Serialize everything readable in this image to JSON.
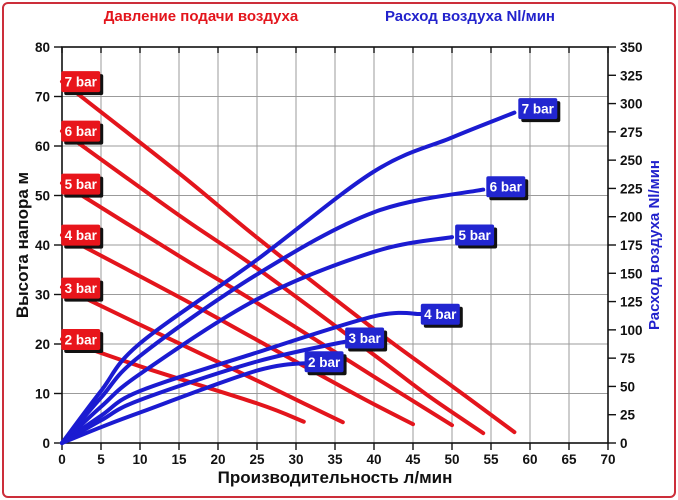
{
  "window": {
    "title": "Pump performance chart"
  },
  "legends": {
    "pressure": "Давление подачи воздуха",
    "airflow": "Расход воздуха Nl/мин"
  },
  "colors": {
    "red_curve": "#e3151c",
    "blue_curve": "#1b1bd1",
    "red_label_bg": "#e8151b",
    "blue_label_bg": "#2226d0",
    "label_text": "#ffffff",
    "label_shadow": "#111111",
    "grid": "#9b9b9b",
    "axis": "#111111",
    "border": "#cc2e3a"
  },
  "chart_data": {
    "type": "line",
    "title": "",
    "x_axis": {
      "label": "Производительность л/мин",
      "min": 0,
      "max": 70,
      "ticks": [
        0,
        5,
        10,
        15,
        20,
        25,
        30,
        35,
        40,
        45,
        50,
        55,
        60,
        65,
        70
      ],
      "grid": true
    },
    "y_left_axis": {
      "label": "Высота напора м",
      "min": 0,
      "max": 80,
      "ticks": [
        0,
        10,
        20,
        30,
        40,
        50,
        60,
        70,
        80
      ],
      "grid": true
    },
    "y_right_axis": {
      "label": "Расход воздуха Nl/мин",
      "min": 0,
      "max": 350,
      "ticks": [
        0,
        25,
        50,
        75,
        100,
        125,
        150,
        175,
        200,
        225,
        250,
        275,
        300,
        325,
        350
      ],
      "grid": false
    },
    "series": [
      {
        "name": "7 bar",
        "family": "head",
        "axis": "left",
        "color_key": "red_curve",
        "points": [
          [
            0,
            73
          ],
          [
            15,
            54.5
          ],
          [
            25,
            41.5
          ],
          [
            40,
            23
          ],
          [
            50,
            11.5
          ],
          [
            58,
            2.2
          ]
        ],
        "label": {
          "x": 2.4,
          "v": 73,
          "bg": "red_label_bg"
        }
      },
      {
        "name": "6 bar",
        "family": "head",
        "axis": "left",
        "color_key": "red_curve",
        "points": [
          [
            0,
            63
          ],
          [
            15,
            46
          ],
          [
            25,
            35.3
          ],
          [
            40,
            17.8
          ],
          [
            47,
            9.5
          ],
          [
            54,
            2
          ]
        ],
        "label": {
          "x": 2.4,
          "v": 63,
          "bg": "red_label_bg"
        }
      },
      {
        "name": "5 bar",
        "family": "head",
        "axis": "left",
        "color_key": "red_curve",
        "points": [
          [
            0,
            52.5
          ],
          [
            15,
            37.8
          ],
          [
            25,
            28.3
          ],
          [
            40,
            13.4
          ],
          [
            50,
            3.6
          ]
        ],
        "label": {
          "x": 2.4,
          "v": 52.3,
          "bg": "red_label_bg"
        }
      },
      {
        "name": "4 bar",
        "family": "head",
        "axis": "left",
        "color_key": "red_curve",
        "points": [
          [
            0,
            42
          ],
          [
            15,
            29.5
          ],
          [
            25,
            20.8
          ],
          [
            38,
            9.5
          ],
          [
            45,
            3.8
          ]
        ],
        "label": {
          "x": 2.4,
          "v": 42,
          "bg": "red_label_bg"
        }
      },
      {
        "name": "3 bar",
        "family": "head",
        "axis": "left",
        "color_key": "red_curve",
        "points": [
          [
            0,
            31.5
          ],
          [
            10,
            23.9
          ],
          [
            25,
            12.6
          ],
          [
            31,
            8
          ],
          [
            36,
            4.2
          ]
        ],
        "label": {
          "x": 2.4,
          "v": 31.3,
          "bg": "red_label_bg"
        }
      },
      {
        "name": "2 bar",
        "family": "head",
        "axis": "left",
        "color_key": "red_curve",
        "points": [
          [
            0,
            21
          ],
          [
            10,
            15.5
          ],
          [
            25,
            8
          ],
          [
            31,
            4.3
          ]
        ],
        "label": {
          "x": 2.4,
          "v": 20.9,
          "bg": "red_label_bg"
        }
      },
      {
        "name": "7 bar",
        "family": "air",
        "axis": "right",
        "color_key": "blue_curve",
        "points": [
          [
            0,
            0
          ],
          [
            5,
            46
          ],
          [
            10,
            88
          ],
          [
            25,
            162
          ],
          [
            40,
            240
          ],
          [
            50,
            270
          ],
          [
            58,
            292
          ]
        ],
        "label": {
          "x": 61,
          "v": 295.5,
          "bg": "blue_label_bg"
        }
      },
      {
        "name": "6 bar",
        "family": "air",
        "axis": "right",
        "color_key": "blue_curve",
        "points": [
          [
            0,
            0
          ],
          [
            5,
            40
          ],
          [
            10,
            77
          ],
          [
            25,
            149
          ],
          [
            40,
            204
          ],
          [
            54,
            224
          ]
        ],
        "label": {
          "x": 56.9,
          "v": 226.5,
          "bg": "blue_label_bg"
        }
      },
      {
        "name": "5 bar",
        "family": "air",
        "axis": "right",
        "color_key": "blue_curve",
        "points": [
          [
            0,
            0
          ],
          [
            5,
            32
          ],
          [
            10,
            61
          ],
          [
            25,
            127
          ],
          [
            40,
            169
          ],
          [
            50,
            182
          ]
        ],
        "label": {
          "x": 52.9,
          "v": 183.8,
          "bg": "blue_label_bg"
        }
      },
      {
        "name": "4 bar",
        "family": "air",
        "axis": "right",
        "color_key": "blue_curve",
        "points": [
          [
            0,
            0
          ],
          [
            5,
            24
          ],
          [
            10,
            46
          ],
          [
            25,
            80
          ],
          [
            40,
            112
          ],
          [
            46,
            114
          ]
        ],
        "label": {
          "x": 48.5,
          "v": 113.8,
          "bg": "blue_label_bg"
        }
      },
      {
        "name": "3 bar",
        "family": "air",
        "axis": "right",
        "color_key": "blue_curve",
        "points": [
          [
            0,
            0
          ],
          [
            5,
            20
          ],
          [
            10,
            38
          ],
          [
            25,
            72
          ],
          [
            38,
            92
          ]
        ],
        "label": {
          "x": 38.8,
          "v": 92.8,
          "bg": "blue_label_bg"
        }
      },
      {
        "name": "2 bar",
        "family": "air",
        "axis": "right",
        "color_key": "blue_curve",
        "points": [
          [
            0,
            0
          ],
          [
            5,
            14
          ],
          [
            10,
            27
          ],
          [
            25,
            64
          ],
          [
            32,
            71
          ]
        ],
        "label": {
          "x": 33.6,
          "v": 71.8,
          "bg": "blue_label_bg"
        }
      }
    ]
  }
}
